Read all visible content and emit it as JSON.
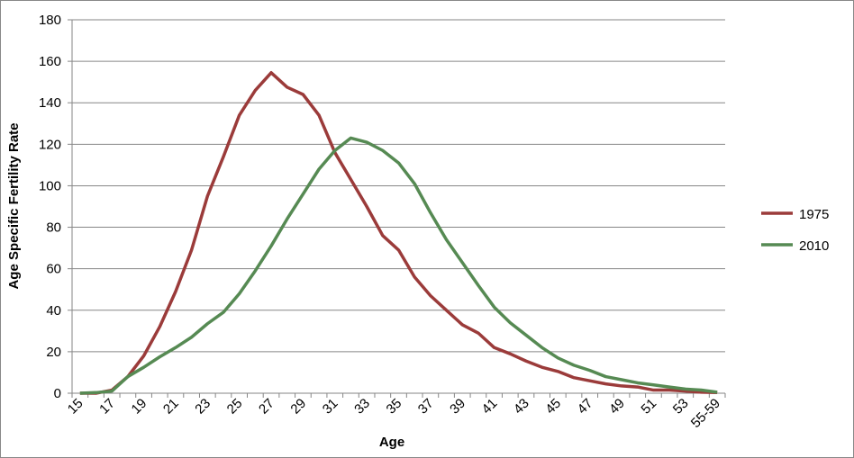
{
  "chart_data": {
    "type": "line",
    "x_label": "Age",
    "y_label": "Age Specific Fertility Rate",
    "categories": [
      "15",
      null,
      "17",
      null,
      "19",
      null,
      "21",
      null,
      "23",
      null,
      "25",
      null,
      "27",
      null,
      "29",
      null,
      "31",
      null,
      "33",
      null,
      "35",
      null,
      "37",
      null,
      "39",
      null,
      "41",
      null,
      "43",
      null,
      "45",
      null,
      "47",
      null,
      "49",
      null,
      "51",
      null,
      "53",
      null,
      "55-59"
    ],
    "series": [
      {
        "name": "1975",
        "color": "#9b3b3a",
        "values": [
          0,
          0,
          1.5,
          8,
          18,
          32,
          49,
          69,
          95,
          114,
          134,
          146,
          154.5,
          147.5,
          144,
          134,
          116,
          103,
          90,
          76,
          69,
          56,
          47,
          40,
          33,
          29,
          22,
          19,
          15.5,
          12.5,
          10.5,
          7.5,
          6,
          4.5,
          3.5,
          3,
          1.5,
          1.5,
          1,
          0.5,
          0.3
        ]
      },
      {
        "name": "2010",
        "color": "#568a53",
        "values": [
          0,
          0.3,
          1,
          8,
          12.5,
          17.5,
          22,
          27,
          33.5,
          39,
          48,
          59,
          71,
          84,
          96,
          108,
          117,
          123,
          121,
          117,
          111,
          101,
          87,
          74,
          63,
          52,
          41.5,
          34,
          28,
          22,
          17,
          13.5,
          11,
          8,
          6.5,
          5,
          4,
          3,
          2,
          1.5,
          0.5
        ]
      }
    ],
    "ylim": [
      0,
      180
    ],
    "yticks": [
      0,
      20,
      40,
      60,
      80,
      100,
      120,
      140,
      160,
      180
    ],
    "grid": true,
    "legend": "right"
  }
}
